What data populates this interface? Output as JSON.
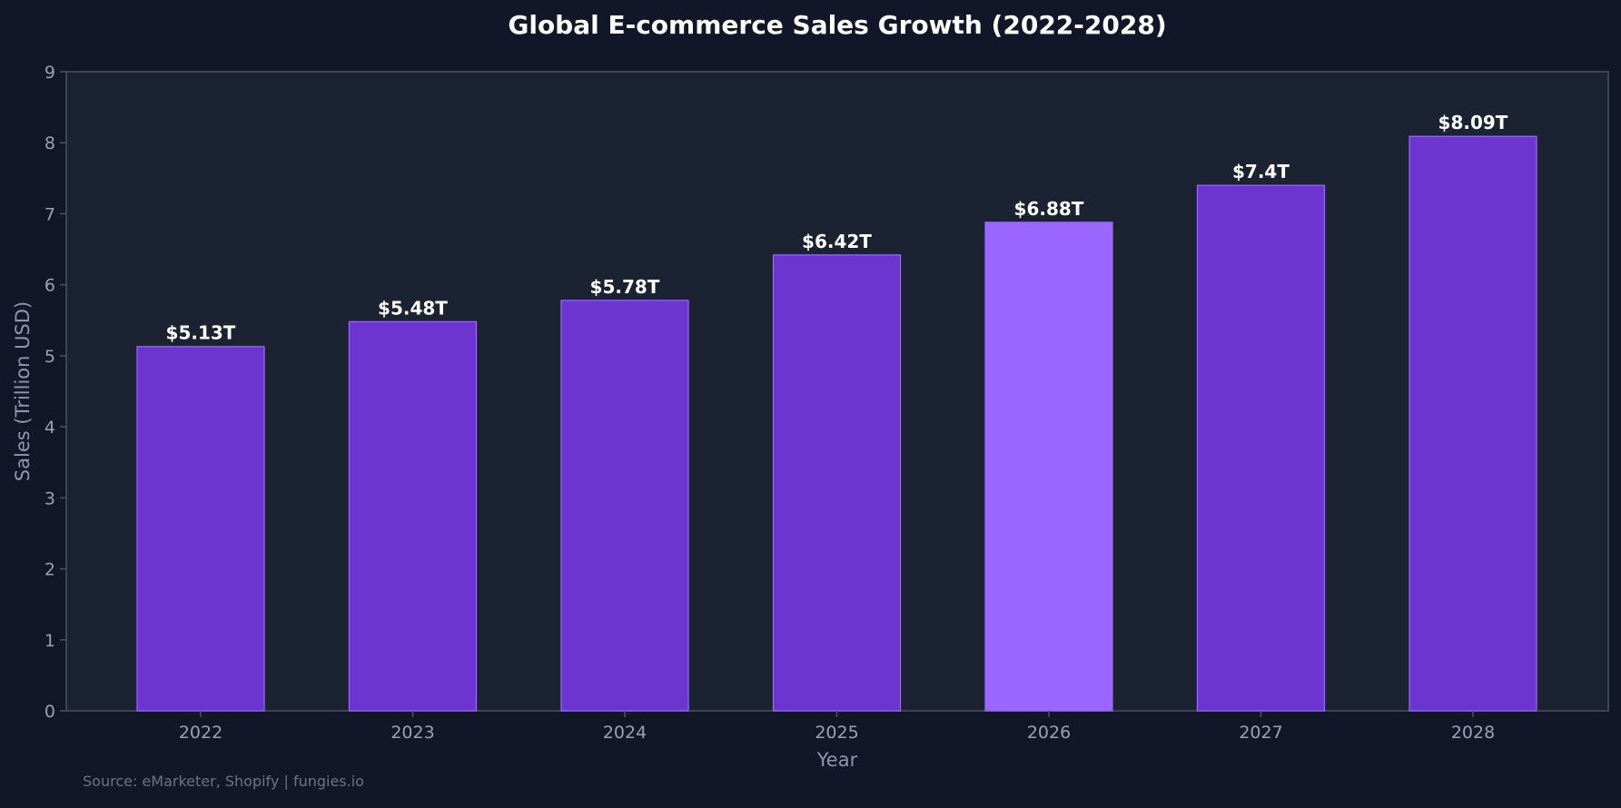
{
  "chart_data": {
    "type": "bar",
    "title": "Global E-commerce Sales Growth (2022-2028)",
    "xlabel": "Year",
    "ylabel": "Sales (Trillion USD)",
    "ylim": [
      0,
      9
    ],
    "yticks": [
      "0",
      "1",
      "2",
      "3",
      "4",
      "5",
      "6",
      "7",
      "8",
      "9"
    ],
    "categories": [
      "2022",
      "2023",
      "2024",
      "2025",
      "2026",
      "2027",
      "2028"
    ],
    "values": [
      5.13,
      5.48,
      5.78,
      6.42,
      6.88,
      7.4,
      8.09
    ],
    "value_labels": [
      "$5.13T",
      "$5.48T",
      "$5.78T",
      "$6.42T",
      "$6.88T",
      "$7.4T",
      "$8.09T"
    ],
    "highlight_index": 4,
    "grid": false,
    "legend": "none",
    "colors": {
      "page_background": "#111729",
      "plot_background": "#1b2332",
      "bar": "#6d35cf",
      "bar_highlight": "#9b66ff",
      "bar_edge": "#9a6bff",
      "axis": "#4a5263"
    }
  },
  "footer": {
    "source": "Source: eMarketer, Shopify | fungies.io"
  }
}
